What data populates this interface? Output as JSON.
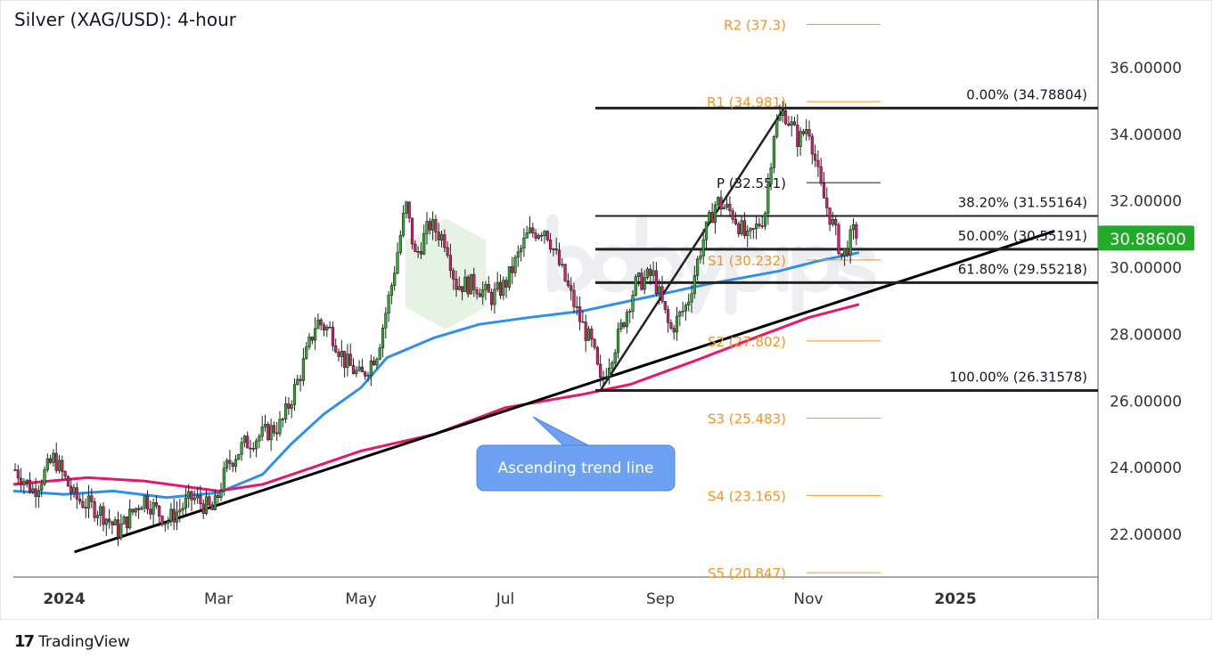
{
  "header": {
    "title": "Silver (XAG/USD): 4-hour"
  },
  "footer": {
    "brand": "TradingView"
  },
  "watermark": "babypips",
  "chart_data": {
    "type": "candlestick",
    "title": "Silver (XAG/USD): 4-hour",
    "y_ticks": [
      "36.00000",
      "34.00000",
      "32.00000",
      "30.00000",
      "28.00000",
      "26.00000",
      "24.00000",
      "22.00000"
    ],
    "y_tick_values": [
      36,
      34,
      32,
      30,
      28,
      26,
      24,
      22
    ],
    "x_ticks": [
      {
        "label": "2024",
        "date": "2024-01-01"
      },
      {
        "label": "Mar",
        "date": "2024-03-01"
      },
      {
        "label": "May",
        "date": "2024-05-01"
      },
      {
        "label": "Jul",
        "date": "2024-07-01"
      },
      {
        "label": "Sep",
        "date": "2024-09-01"
      },
      {
        "label": "Nov",
        "date": "2024-11-01"
      },
      {
        "label": "2025",
        "date": "2025-01-01"
      }
    ],
    "ylim": [
      20.6,
      38.0
    ],
    "grid": false,
    "last_price": {
      "label": "30.88600",
      "value": 30.886,
      "color": "#22ab28"
    },
    "price_path": [
      [
        "2023-12-12",
        24.0
      ],
      [
        "2023-12-20",
        23.3
      ],
      [
        "2023-12-28",
        24.3
      ],
      [
        "2024-01-05",
        23.1
      ],
      [
        "2024-01-15",
        22.7
      ],
      [
        "2024-01-22",
        22.1
      ],
      [
        "2024-02-01",
        23.1
      ],
      [
        "2024-02-10",
        22.4
      ],
      [
        "2024-02-20",
        23.1
      ],
      [
        "2024-02-28",
        22.7
      ],
      [
        "2024-03-05",
        24.1
      ],
      [
        "2024-03-12",
        24.7
      ],
      [
        "2024-03-20",
        25.0
      ],
      [
        "2024-03-28",
        25.3
      ],
      [
        "2024-04-05",
        26.8
      ],
      [
        "2024-04-12",
        28.4
      ],
      [
        "2024-04-18",
        28.1
      ],
      [
        "2024-04-24",
        27.2
      ],
      [
        "2024-05-01",
        26.7
      ],
      [
        "2024-05-08",
        27.5
      ],
      [
        "2024-05-14",
        29.5
      ],
      [
        "2024-05-20",
        31.9
      ],
      [
        "2024-05-24",
        30.3
      ],
      [
        "2024-05-30",
        31.3
      ],
      [
        "2024-06-06",
        30.8
      ],
      [
        "2024-06-10",
        29.5
      ],
      [
        "2024-06-18",
        29.5
      ],
      [
        "2024-06-25",
        29.1
      ],
      [
        "2024-07-01",
        29.5
      ],
      [
        "2024-07-10",
        31.0
      ],
      [
        "2024-07-17",
        31.2
      ],
      [
        "2024-07-24",
        29.8
      ],
      [
        "2024-07-31",
        28.4
      ],
      [
        "2024-08-05",
        27.6
      ],
      [
        "2024-08-08",
        26.5
      ],
      [
        "2024-08-15",
        27.9
      ],
      [
        "2024-08-22",
        29.5
      ],
      [
        "2024-08-29",
        29.8
      ],
      [
        "2024-09-05",
        28.1
      ],
      [
        "2024-09-12",
        28.9
      ],
      [
        "2024-09-18",
        30.7
      ],
      [
        "2024-09-24",
        32.0
      ],
      [
        "2024-10-01",
        31.6
      ],
      [
        "2024-10-07",
        30.8
      ],
      [
        "2024-10-14",
        31.6
      ],
      [
        "2024-10-18",
        34.2
      ],
      [
        "2024-10-22",
        34.7
      ],
      [
        "2024-10-28",
        33.8
      ],
      [
        "2024-11-01",
        34.3
      ],
      [
        "2024-11-06",
        32.4
      ],
      [
        "2024-11-12",
        31.1
      ],
      [
        "2024-11-15",
        30.3
      ],
      [
        "2024-11-20",
        31.1
      ],
      [
        "2024-11-22",
        30.886
      ]
    ],
    "series": [
      {
        "color": "#2f8ff0",
        "values": [
          [
            "2023-12-12",
            23.3
          ],
          [
            "2024-01-01",
            23.2
          ],
          [
            "2024-01-20",
            23.3
          ],
          [
            "2024-02-10",
            23.1
          ],
          [
            "2024-03-01",
            23.25
          ],
          [
            "2024-03-20",
            23.8
          ],
          [
            "2024-04-01",
            24.7
          ],
          [
            "2024-04-15",
            25.6
          ],
          [
            "2024-05-01",
            26.4
          ],
          [
            "2024-05-12",
            27.3
          ],
          [
            "2024-06-01",
            27.9
          ],
          [
            "2024-06-20",
            28.3
          ],
          [
            "2024-07-10",
            28.5
          ],
          [
            "2024-08-01",
            28.7
          ],
          [
            "2024-09-01",
            29.2
          ],
          [
            "2024-09-20",
            29.5
          ],
          [
            "2024-10-20",
            29.9
          ],
          [
            "2024-11-05",
            30.2
          ],
          [
            "2024-11-22",
            30.45
          ]
        ]
      },
      {
        "color": "#e6176f",
        "values": [
          [
            "2023-12-12",
            23.5
          ],
          [
            "2024-01-10",
            23.7
          ],
          [
            "2024-02-01",
            23.6
          ],
          [
            "2024-03-01",
            23.3
          ],
          [
            "2024-03-20",
            23.5
          ],
          [
            "2024-04-10",
            24.0
          ],
          [
            "2024-05-01",
            24.5
          ],
          [
            "2024-06-01",
            25.0
          ],
          [
            "2024-07-01",
            25.8
          ],
          [
            "2024-08-01",
            26.2
          ],
          [
            "2024-08-20",
            26.5
          ],
          [
            "2024-09-15",
            27.2
          ],
          [
            "2024-10-10",
            27.9
          ],
          [
            "2024-11-01",
            28.5
          ],
          [
            "2024-11-22",
            28.9
          ]
        ]
      }
    ],
    "trend_line": {
      "label": "Ascending trend line",
      "from": [
        "2024-01-05",
        21.47
      ],
      "to": [
        "2025-02-11",
        31.1
      ],
      "callout_color": "#6ea1f2"
    },
    "fib_swing": {
      "from": [
        "2024-08-08",
        26.31578
      ],
      "to": [
        "2024-10-22",
        34.78804
      ]
    },
    "fibonacci": [
      {
        "label": "0.00% (34.78804)",
        "value": 34.78804
      },
      {
        "label": "38.20% (31.55164)",
        "value": 31.55164
      },
      {
        "label": "50.00% (30.55191)",
        "value": 30.55191
      },
      {
        "label": "61.80% (29.55218)",
        "value": 29.55218
      },
      {
        "label": "100.00% (26.31578)",
        "value": 26.31578
      }
    ],
    "pivots": [
      {
        "label": "R2 (37.3)",
        "value": 37.3,
        "color": "#f7931a"
      },
      {
        "label": "R1 (34.981)",
        "value": 34.981,
        "color": "#f7931a"
      },
      {
        "label": "P (32.551)",
        "value": 32.551,
        "color": "#131722"
      },
      {
        "label": "S1 (30.232)",
        "value": 30.232,
        "color": "#f7931a"
      },
      {
        "label": "S2 (27.802)",
        "value": 27.802,
        "color": "#f7931a"
      },
      {
        "label": "S3 (25.483)",
        "value": 25.483,
        "color": "#f7931a"
      },
      {
        "label": "S4 (23.165)",
        "value": 23.165,
        "color": "#f7931a"
      },
      {
        "label": "S5 (20.847)",
        "value": 20.847,
        "color": "#f7931a"
      }
    ]
  }
}
